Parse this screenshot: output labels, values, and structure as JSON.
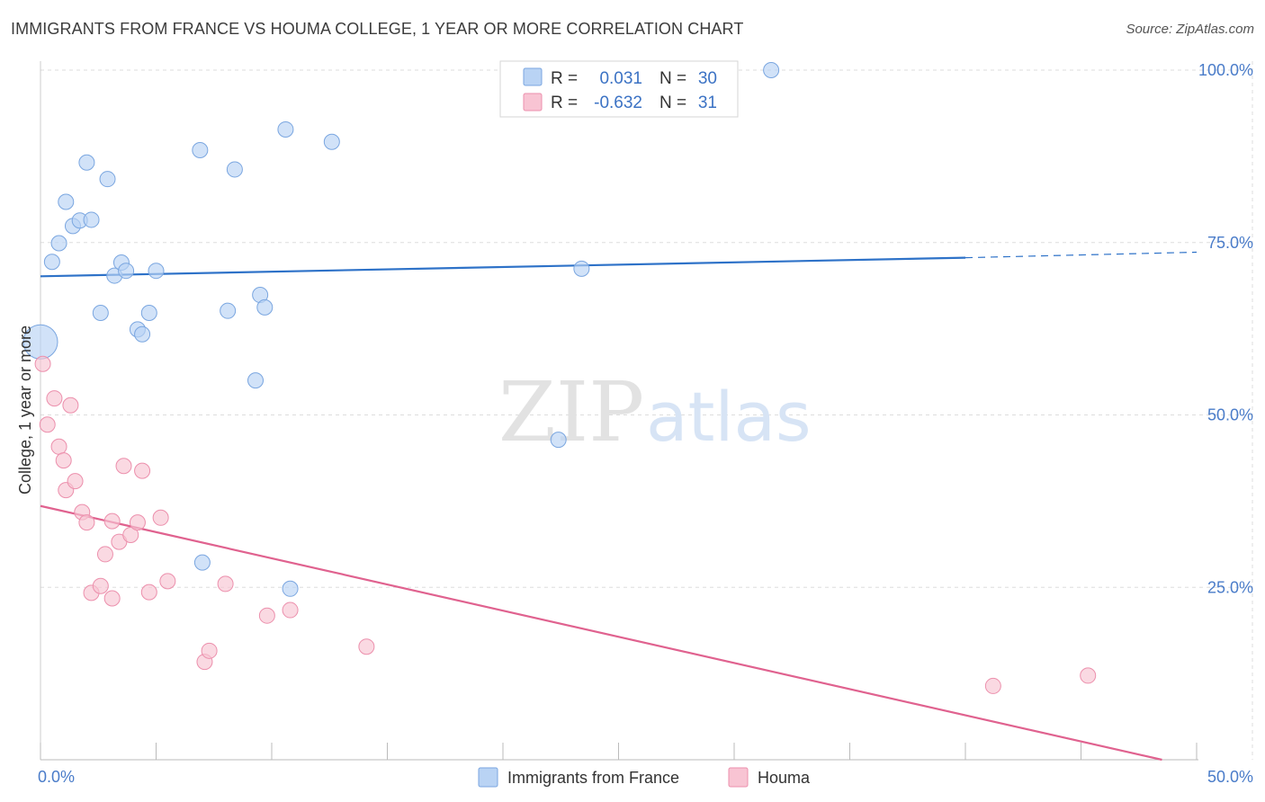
{
  "title": "IMMIGRANTS FROM FRANCE VS HOUMA COLLEGE, 1 YEAR OR MORE CORRELATION CHART",
  "source": "Source: ZipAtlas.com",
  "watermark": {
    "zip": "ZIP",
    "atlas": "atlas"
  },
  "colors": {
    "blue_fill": "#b9d3f4",
    "blue_stroke": "#7aa6e0",
    "blue_line": "#2e72c8",
    "pink_fill": "#f8c4d3",
    "pink_stroke": "#ec8fac",
    "pink_line": "#e0628f",
    "tick_text": "#4a7cc9",
    "grid": "#dddddd"
  },
  "stats_box": {
    "rows": [
      {
        "r_label": "R =",
        "r_value": "0.031",
        "n_label": "N =",
        "n_value": "30"
      },
      {
        "r_label": "R =",
        "r_value": "-0.632",
        "n_label": "N =",
        "n_value": "31"
      }
    ]
  },
  "chart_data": {
    "type": "scatter",
    "title": "IMMIGRANTS FROM FRANCE VS HOUMA COLLEGE, 1 YEAR OR MORE CORRELATION CHART",
    "xlabel": "",
    "ylabel": "College, 1 year or more",
    "xlim": [
      0,
      50
    ],
    "ylim": [
      0,
      100
    ],
    "x_tick_labels": [
      "0.0%",
      "50.0%"
    ],
    "y_ticks": [
      {
        "value": 100,
        "label": "100.0%"
      },
      {
        "value": 75,
        "label": "75.0%"
      },
      {
        "value": 50,
        "label": "50.0%"
      },
      {
        "value": 25,
        "label": "25.0%"
      }
    ],
    "grid": true,
    "legend_position": "bottom-center",
    "series": [
      {
        "name": "Immigrants from France",
        "r": 0.031,
        "n": 30,
        "trend": {
          "x0": 0,
          "y0": 70.1,
          "x1": 40,
          "y1": 72.8,
          "dash_to_x": 50,
          "dash_to_y": 73.6
        },
        "points": [
          {
            "x": 0.0,
            "y": 60.6,
            "size": "large"
          },
          {
            "x": 0.5,
            "y": 72.2
          },
          {
            "x": 0.8,
            "y": 74.9
          },
          {
            "x": 1.1,
            "y": 80.9
          },
          {
            "x": 1.4,
            "y": 77.4
          },
          {
            "x": 1.7,
            "y": 78.2
          },
          {
            "x": 2.0,
            "y": 86.6
          },
          {
            "x": 2.2,
            "y": 78.3
          },
          {
            "x": 2.6,
            "y": 64.8
          },
          {
            "x": 2.9,
            "y": 84.2
          },
          {
            "x": 3.2,
            "y": 70.2
          },
          {
            "x": 3.5,
            "y": 72.1
          },
          {
            "x": 3.7,
            "y": 70.9
          },
          {
            "x": 4.2,
            "y": 62.4
          },
          {
            "x": 4.4,
            "y": 61.7
          },
          {
            "x": 4.7,
            "y": 64.8
          },
          {
            "x": 5.0,
            "y": 70.9
          },
          {
            "x": 6.9,
            "y": 88.4
          },
          {
            "x": 7.0,
            "y": 28.6
          },
          {
            "x": 8.1,
            "y": 65.1
          },
          {
            "x": 8.4,
            "y": 85.6
          },
          {
            "x": 9.3,
            "y": 55.0
          },
          {
            "x": 9.5,
            "y": 67.4
          },
          {
            "x": 9.7,
            "y": 65.6
          },
          {
            "x": 10.6,
            "y": 91.4
          },
          {
            "x": 10.8,
            "y": 24.8
          },
          {
            "x": 12.6,
            "y": 89.6
          },
          {
            "x": 22.4,
            "y": 46.4
          },
          {
            "x": 23.4,
            "y": 71.2
          },
          {
            "x": 31.6,
            "y": 100.0
          }
        ]
      },
      {
        "name": "Houma",
        "r": -0.632,
        "n": 31,
        "trend": {
          "x0": 0,
          "y0": 36.8,
          "x1": 48.5,
          "y1": 0
        },
        "points": [
          {
            "x": 0.1,
            "y": 57.4
          },
          {
            "x": 0.3,
            "y": 48.6
          },
          {
            "x": 0.6,
            "y": 52.4
          },
          {
            "x": 0.8,
            "y": 45.4
          },
          {
            "x": 1.0,
            "y": 43.4
          },
          {
            "x": 1.1,
            "y": 39.1
          },
          {
            "x": 1.3,
            "y": 51.4
          },
          {
            "x": 1.5,
            "y": 40.4
          },
          {
            "x": 1.8,
            "y": 35.9
          },
          {
            "x": 2.0,
            "y": 34.4
          },
          {
            "x": 2.2,
            "y": 24.2
          },
          {
            "x": 2.6,
            "y": 25.2
          },
          {
            "x": 2.8,
            "y": 29.8
          },
          {
            "x": 3.1,
            "y": 34.6
          },
          {
            "x": 3.1,
            "y": 23.4
          },
          {
            "x": 3.4,
            "y": 31.6
          },
          {
            "x": 3.6,
            "y": 42.6
          },
          {
            "x": 3.9,
            "y": 32.6
          },
          {
            "x": 4.2,
            "y": 34.4
          },
          {
            "x": 4.4,
            "y": 41.9
          },
          {
            "x": 4.7,
            "y": 24.3
          },
          {
            "x": 5.2,
            "y": 35.1
          },
          {
            "x": 5.5,
            "y": 25.9
          },
          {
            "x": 7.1,
            "y": 14.2
          },
          {
            "x": 7.3,
            "y": 15.8
          },
          {
            "x": 8.0,
            "y": 25.5
          },
          {
            "x": 9.8,
            "y": 20.9
          },
          {
            "x": 10.8,
            "y": 21.7
          },
          {
            "x": 14.1,
            "y": 16.4
          },
          {
            "x": 41.2,
            "y": 10.7
          },
          {
            "x": 45.3,
            "y": 12.2
          }
        ]
      }
    ]
  }
}
